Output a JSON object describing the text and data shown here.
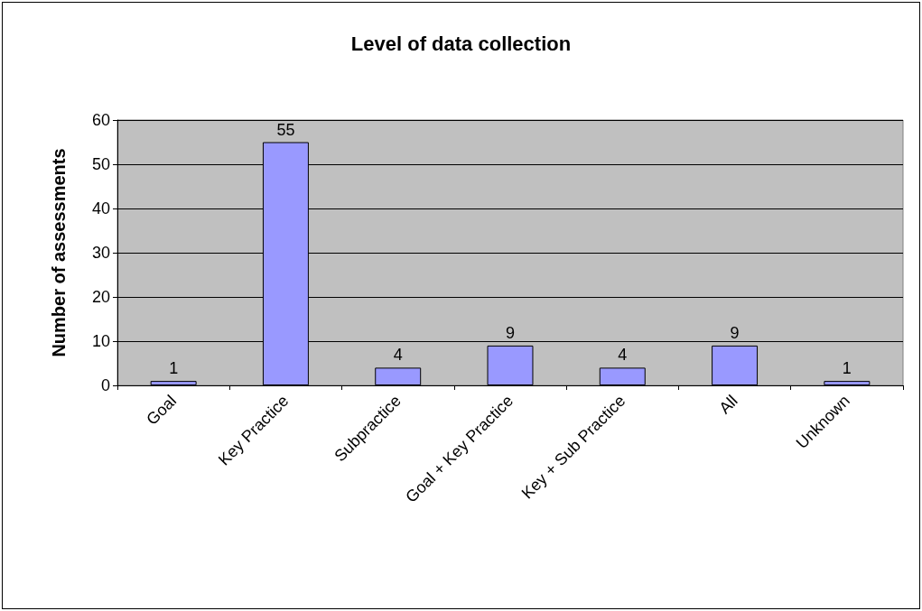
{
  "chart_data": {
    "type": "bar",
    "title": "Level of data collection",
    "ylabel": "Number of assessments",
    "categories": [
      "Goal",
      "Key Practice",
      "Subpractice",
      "Goal + Key Practice",
      "Key + Sub Practice",
      "All",
      "Unknown"
    ],
    "values": [
      1,
      55,
      4,
      9,
      4,
      9,
      1
    ],
    "color": "#9999ff",
    "ylim": [
      0,
      60
    ],
    "yticks": [
      0,
      10,
      20,
      30,
      40,
      50,
      60
    ],
    "grid": "y",
    "data_labels": true
  }
}
